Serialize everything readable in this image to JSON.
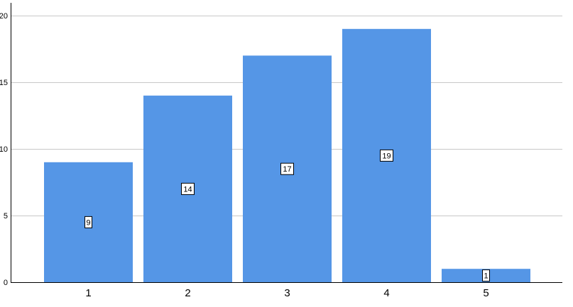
{
  "chart_data": {
    "type": "bar",
    "categories": [
      "1",
      "2",
      "3",
      "4",
      "5"
    ],
    "values": [
      9,
      14,
      17,
      19,
      1
    ],
    "data_labels": [
      "9",
      "14",
      "17",
      "19",
      "1"
    ],
    "y_ticks": [
      "0",
      "5",
      "10",
      "15",
      "20"
    ],
    "y_tick_values": [
      0,
      5,
      10,
      15,
      20
    ],
    "ylim": [
      0,
      20
    ],
    "title": "",
    "xlabel": "",
    "ylabel": "",
    "grid": true,
    "legend": "none",
    "bar_color": "#5596e6",
    "grid_color": "#c8c8c8",
    "axis_color": "#000000"
  }
}
